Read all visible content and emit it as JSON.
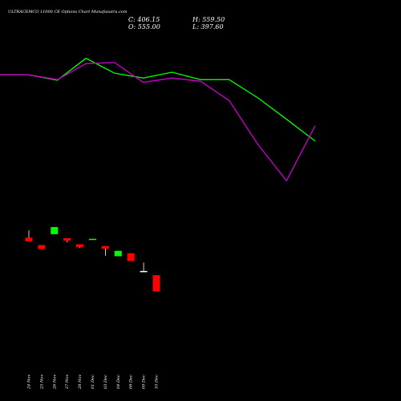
{
  "chart_data": {
    "type": "candlestick",
    "title": "ULTRACEMCO 11000 CE Options Chart Munafasutra.com",
    "stats": {
      "close": "C: 406.15",
      "open": "O: 555.00",
      "high": "H: 559.50",
      "low": "L: 397.60"
    },
    "categories": [
      "24 Nov",
      "25 Nov",
      "26 Nov",
      "27 Nov",
      "28 Nov",
      "01 Dec",
      "03 Dec",
      "04 Dec",
      "08 Dec",
      "09 Dec",
      "10 Dec"
    ],
    "candles": [
      {
        "open": 0.4,
        "close": 0.27,
        "high": 0.64,
        "low": 0.27,
        "color": "#ff0000"
      },
      {
        "open": 0.15,
        "close": 0.02,
        "high": 0.15,
        "low": 0.02,
        "color": "#ff0000"
      },
      {
        "open": 0.51,
        "close": 0.75,
        "high": 0.75,
        "low": 0.51,
        "color": "#00ff00"
      },
      {
        "open": 0.38,
        "close": 0.3,
        "high": 0.38,
        "low": 0.24,
        "color": "#ff0000"
      },
      {
        "open": 0.18,
        "close": 0.08,
        "high": 0.18,
        "low": 0.06,
        "color": "#ff0000"
      },
      {
        "open": 0.33,
        "close": 0.36,
        "high": 0.36,
        "low": 0.33,
        "color": "#00ff00"
      },
      {
        "open": 0.12,
        "close": 0.03,
        "high": 0.12,
        "low": -0.21,
        "color": "#ff0000"
      },
      {
        "open": -0.22,
        "close": -0.04,
        "high": -0.04,
        "low": -0.22,
        "color": "#00ff00"
      },
      {
        "open": -0.12,
        "close": -0.38,
        "high": -0.12,
        "low": -0.38,
        "color": "#ff0000"
      },
      {
        "open": -0.71,
        "close": -0.73,
        "high": -0.43,
        "low": -0.73,
        "color": "#ffffff"
      },
      {
        "open": -0.85,
        "close": -1.39,
        "high": -0.85,
        "low": -1.39,
        "color": "#ff0000"
      }
    ],
    "price_range": [
      -1.7,
      1.5
    ],
    "lines": [
      {
        "color": "#00ff00",
        "points": [
          0.0,
          0.0,
          -0.1,
          0.31,
          0.03,
          -0.06,
          0.05,
          -0.09,
          -0.09,
          -0.43,
          -0.83,
          -1.24
        ]
      },
      {
        "color": "#cc00cc",
        "points": [
          0.0,
          0.0,
          -0.09,
          0.21,
          0.23,
          -0.14,
          -0.06,
          -0.12,
          -0.48,
          -1.3,
          -1.98,
          -0.95
        ]
      }
    ],
    "line_range": [
      -2.5,
      0.5
    ]
  }
}
